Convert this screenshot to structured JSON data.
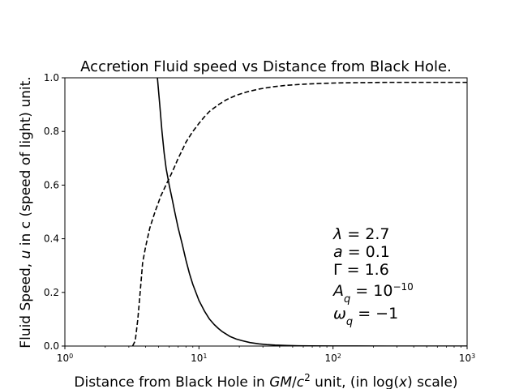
{
  "chart_data": {
    "type": "line",
    "title": "Accretion Fluid speed vs Distance from Black Hole.",
    "xlabel": {
      "prefix": "Distance from Black Hole in ",
      "unit_italic": "GM",
      "slash": "/",
      "unit_c": "c",
      "unit_exp": "2",
      "suffix": " unit, (in log(",
      "x_italic": "x",
      "end": ") scale)"
    },
    "ylabel": {
      "prefix": "Fluid Speed, ",
      "u_italic": "u",
      "suffix": " in c (speed of light) unit."
    },
    "xscale": "log",
    "xlim": [
      1,
      1000
    ],
    "ylim": [
      0,
      1
    ],
    "grid": false,
    "x_ticks": [
      {
        "value": 1,
        "base": "10",
        "exp": "0"
      },
      {
        "value": 10,
        "base": "10",
        "exp": "1"
      },
      {
        "value": 100,
        "base": "10",
        "exp": "2"
      },
      {
        "value": 1000,
        "base": "10",
        "exp": "3"
      }
    ],
    "y_ticks": [
      {
        "value": 0.0,
        "label": "0.0"
      },
      {
        "value": 0.2,
        "label": "0.2"
      },
      {
        "value": 0.4,
        "label": "0.4"
      },
      {
        "value": 0.6,
        "label": "0.6"
      },
      {
        "value": 0.8,
        "label": "0.8"
      },
      {
        "value": 1.0,
        "label": "1.0"
      }
    ],
    "series": [
      {
        "style": "solid",
        "color": "#000000",
        "x": [
          4.9,
          5.1,
          5.3,
          5.5,
          5.7,
          5.9,
          6.0,
          6.3,
          6.6,
          7.0,
          7.5,
          8.0,
          8.5,
          9.0,
          10.0,
          11.0,
          12.0,
          13.0,
          14.0,
          15.0,
          17.0,
          19.0,
          21.0,
          24.0,
          28.0,
          32.0,
          37.0,
          45.0,
          55.0,
          70.0,
          100.0,
          150.0,
          250.0,
          400.0,
          700.0,
          1000.0
        ],
        "y": [
          1.0,
          0.9,
          0.8,
          0.72,
          0.66,
          0.62,
          0.6,
          0.55,
          0.5,
          0.44,
          0.38,
          0.32,
          0.27,
          0.23,
          0.17,
          0.13,
          0.1,
          0.08,
          0.065,
          0.053,
          0.036,
          0.026,
          0.02,
          0.013,
          0.008,
          0.0055,
          0.0035,
          0.002,
          0.001,
          0.0006,
          0.0002,
          0.0001,
          0.0,
          0.0,
          0.0,
          0.0
        ]
      },
      {
        "style": "dashed",
        "color": "#000000",
        "x": [
          3.2,
          3.35,
          3.5,
          3.6,
          3.7,
          3.8,
          4.0,
          4.3,
          4.7,
          5.2,
          5.8,
          6.2,
          6.6,
          7.0,
          7.5,
          8.0,
          9.0,
          10.0,
          11.0,
          12.0,
          14.0,
          16.0,
          19.0,
          23.0,
          28.0,
          35.0,
          45.0,
          60.0,
          80.0,
          110.0,
          160.0,
          250.0,
          400.0,
          700.0,
          1000.0
        ],
        "y": [
          0.0,
          0.02,
          0.1,
          0.17,
          0.24,
          0.31,
          0.37,
          0.44,
          0.5,
          0.56,
          0.61,
          0.64,
          0.67,
          0.7,
          0.73,
          0.76,
          0.8,
          0.83,
          0.855,
          0.875,
          0.9,
          0.918,
          0.935,
          0.948,
          0.958,
          0.966,
          0.972,
          0.976,
          0.979,
          0.981,
          0.982,
          0.983,
          0.983,
          0.983,
          0.983
        ]
      }
    ],
    "annotations": [
      {
        "id": "lambda",
        "sym": "λ",
        "sym_italic": true,
        "sub": "",
        "rhs": " = 2.7",
        "sup": ""
      },
      {
        "id": "a",
        "sym": "a",
        "sym_italic": true,
        "sub": "",
        "rhs": " = 0.1",
        "sup": ""
      },
      {
        "id": "gamma",
        "sym": "Γ",
        "sym_italic": false,
        "sub": "",
        "rhs": " = 1.6",
        "sup": ""
      },
      {
        "id": "aq",
        "sym": "A",
        "sym_italic": true,
        "sub": "q",
        "rhs": " = 10",
        "sup": "−10"
      },
      {
        "id": "omega",
        "sym": "ω",
        "sym_italic": true,
        "sub": "q",
        "rhs": " = −1",
        "sup": ""
      }
    ]
  }
}
